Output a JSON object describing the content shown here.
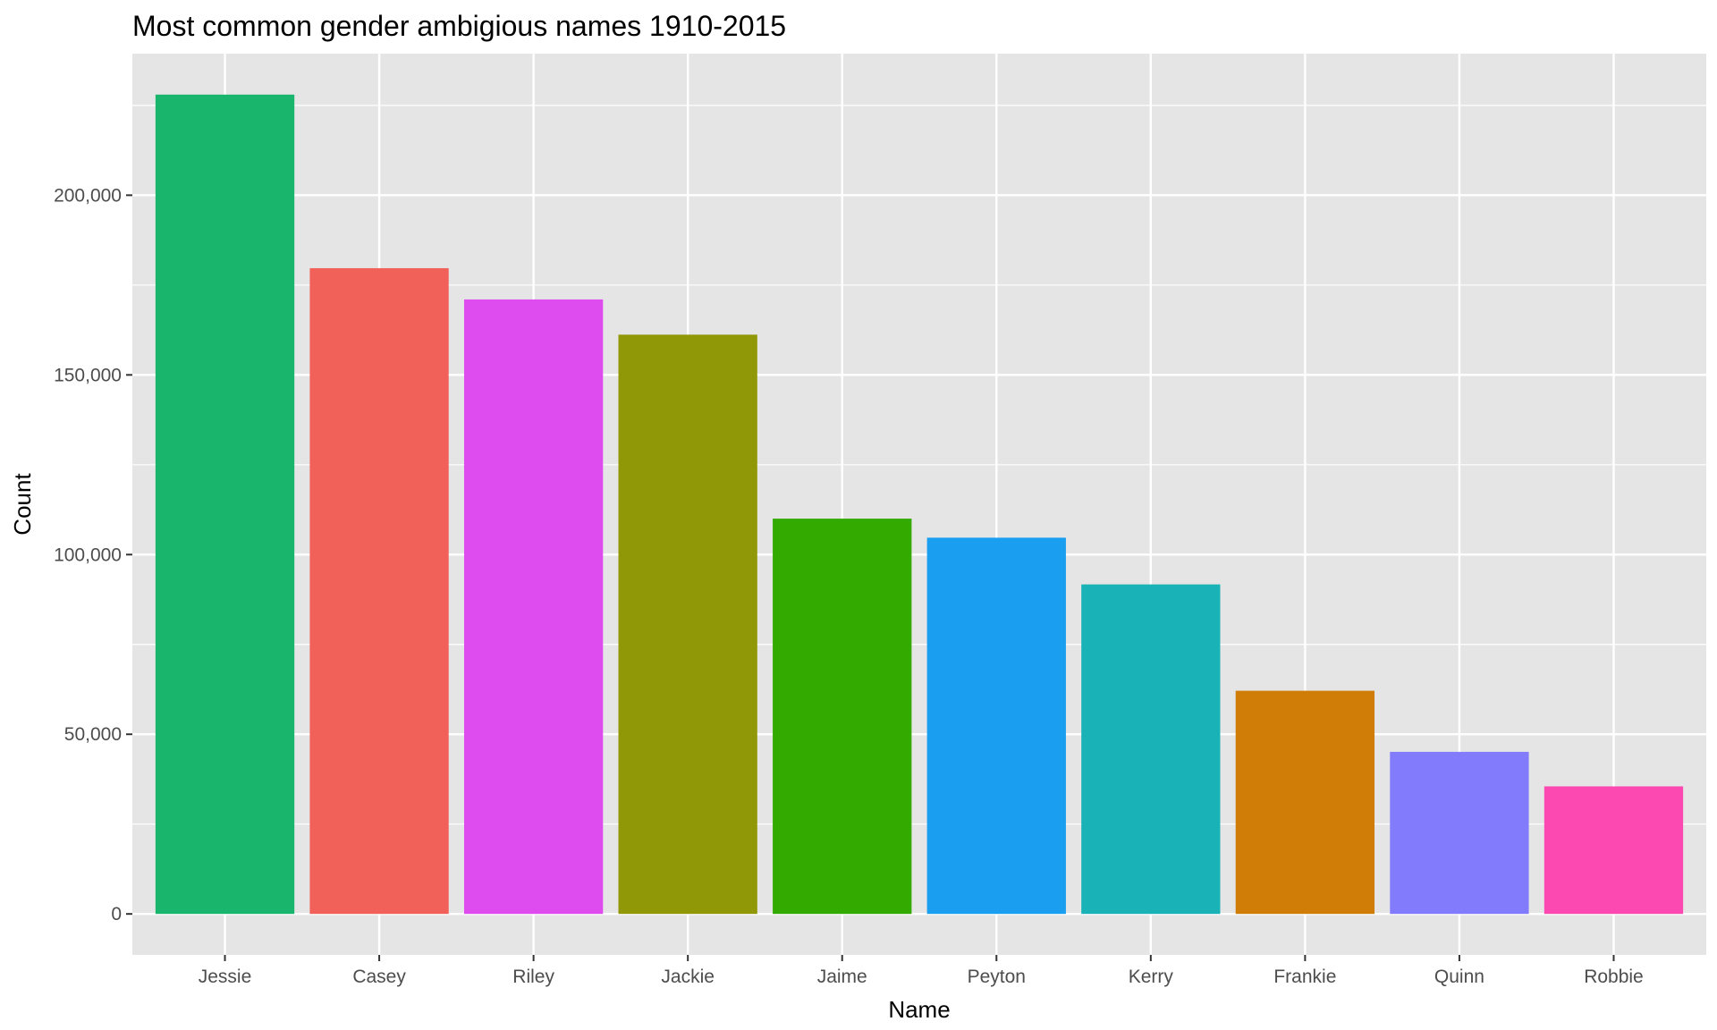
{
  "chart_data": {
    "type": "bar",
    "title": "Most common gender ambigious names 1910-2015",
    "xlabel": "Name",
    "ylabel": "Count",
    "categories": [
      "Jessie",
      "Casey",
      "Riley",
      "Jackie",
      "Jaime",
      "Peyton",
      "Kerry",
      "Frankie",
      "Quinn",
      "Robbie"
    ],
    "values": [
      228000,
      179700,
      171000,
      161200,
      110000,
      104700,
      91700,
      62100,
      45100,
      35500
    ],
    "colors": [
      "#1AB56D",
      "#F2605A",
      "#DE4BEF",
      "#919807",
      "#33AA00",
      "#1A9EF0",
      "#19B3B7",
      "#CF7D06",
      "#827CFC",
      "#FC48B1"
    ],
    "y_ticks": [
      0,
      50000,
      100000,
      150000,
      200000
    ],
    "y_tick_labels": [
      "0",
      "50,000",
      "100,000",
      "150,000",
      "200,000"
    ],
    "ylim": [
      -11400,
      239400
    ],
    "grid": true,
    "legend": "none",
    "panel_background": "#E5E5E5",
    "grid_color": "#FFFFFF"
  }
}
